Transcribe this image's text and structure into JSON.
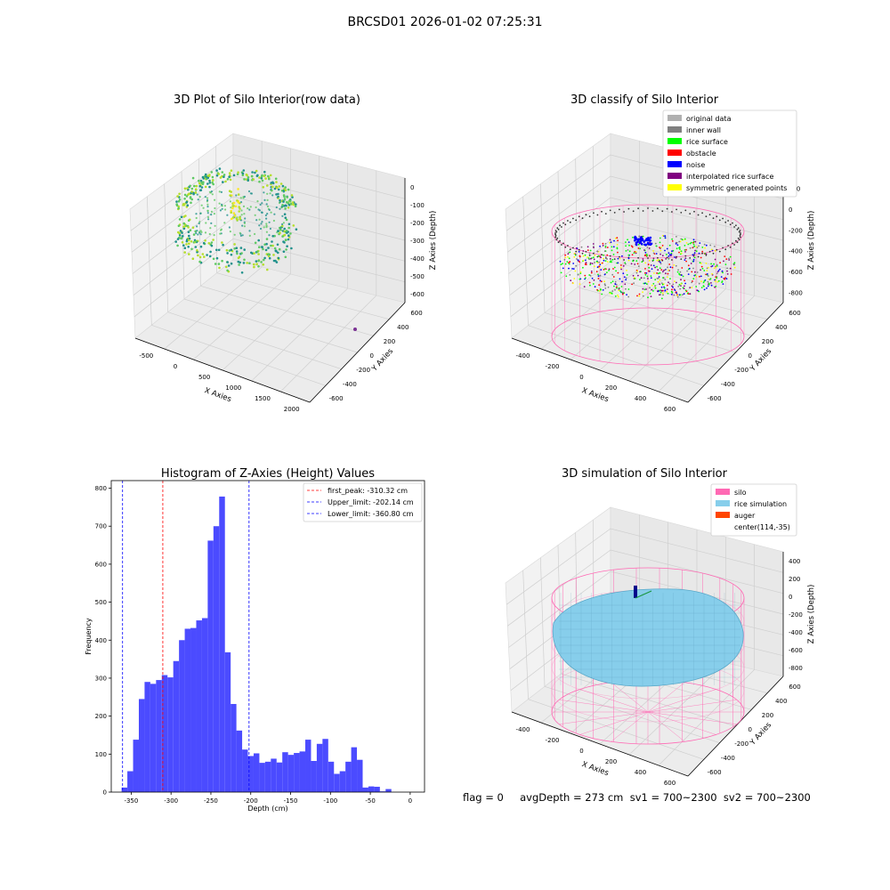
{
  "suptitle": "BRCSD01 2026-01-02 07:25:31",
  "status_text": "flag = 0     avgDepth = 273 cm  sv1 = 700~2300  sv2 = 700~2300",
  "colors": {
    "histogram_bar": "#4b4bff",
    "first_peak_line": "#ff0000",
    "limit_line": "#0000ff",
    "pane": "#f2f2f2",
    "silo_wire": "#ff69b4",
    "rice_sim": "#87ceeb"
  },
  "chart_data": [
    {
      "type": "scatter3d",
      "title": "3D Plot of Silo Interior(row data)",
      "xlabel": "X Axies",
      "ylabel": "Y Axies",
      "zlabel": "Z Axies (Depth)",
      "xticks": [
        "-500",
        "0",
        "500",
        "1000",
        "1500",
        "2000"
      ],
      "yticks": [
        "-600",
        "-400",
        "-200",
        "0",
        "200",
        "400",
        "600"
      ],
      "zticks": [
        "0",
        "-100",
        "-200",
        "-300",
        "-400",
        "-500",
        "-600"
      ],
      "colormap": "viridis"
    },
    {
      "type": "scatter3d",
      "title": "3D classify of Silo Interior",
      "xlabel": "X Axies",
      "ylabel": "Y Axies",
      "zlabel": "Z Axies (Depth)",
      "xticks": [
        "-400",
        "-200",
        "0",
        "200",
        "400",
        "600"
      ],
      "yticks": [
        "-600",
        "-400",
        "-200",
        "0",
        "200",
        "400",
        "600"
      ],
      "zticks": [
        "200",
        "0",
        "-200",
        "-400",
        "-600",
        "-800"
      ],
      "legend": [
        {
          "label": "original data",
          "color": "#b0b0b0"
        },
        {
          "label": "inner wall",
          "color": "#808080"
        },
        {
          "label": "rice surface",
          "color": "#00ff00"
        },
        {
          "label": "obstacle",
          "color": "#ff0000"
        },
        {
          "label": "noise",
          "color": "#0000ff"
        },
        {
          "label": "interpolated rice surface",
          "color": "#800080"
        },
        {
          "label": "symmetric generated points",
          "color": "#ffff00"
        }
      ],
      "legend_position": "upper-right"
    },
    {
      "type": "bar",
      "title": "Histogram of Z-Axies (Height) Values",
      "xlabel": "Depth (cm)",
      "ylabel": "Frequency",
      "xlim": [
        -375,
        18
      ],
      "ylim": [
        0,
        820
      ],
      "xticks": [
        -350,
        -300,
        -250,
        -200,
        -150,
        -100,
        -50,
        0
      ],
      "yticks": [
        0,
        100,
        200,
        300,
        400,
        500,
        600,
        700,
        800
      ],
      "bin_start": -362,
      "bin_width": 7.2,
      "values": [
        12,
        55,
        138,
        245,
        290,
        285,
        295,
        308,
        302,
        345,
        400,
        430,
        432,
        452,
        458,
        662,
        700,
        778,
        368,
        232,
        162,
        112,
        95,
        102,
        77,
        80,
        88,
        78,
        105,
        98,
        103,
        107,
        138,
        82,
        127,
        140,
        80,
        48,
        55,
        80,
        118,
        85,
        12,
        15,
        14,
        2,
        8
      ],
      "vlines": [
        {
          "label": "first_peak: -310.32 cm",
          "x": -310.32,
          "color": "#ff0000"
        },
        {
          "label": "Upper_limit: -202.14 cm",
          "x": -202.14,
          "color": "#0000ff"
        },
        {
          "label": "Lower_limit: -360.80 cm",
          "x": -360.8,
          "color": "#0000ff"
        }
      ],
      "legend_position": "upper-right"
    },
    {
      "type": "surface3d",
      "title": "3D simulation of Silo Interior",
      "xlabel": "X Axies",
      "ylabel": "Y Axies",
      "zlabel": "Z Axies (Depth)",
      "xticks": [
        "-400",
        "-200",
        "0",
        "200",
        "400",
        "600"
      ],
      "yticks": [
        "-600",
        "-400",
        "-200",
        "0",
        "200",
        "400",
        "600"
      ],
      "zticks": [
        "400",
        "200",
        "0",
        "-200",
        "-400",
        "-600",
        "-800"
      ],
      "legend": [
        {
          "label": "silo",
          "color": "#ff69b4"
        },
        {
          "label": "rice simulation",
          "color": "#87ceeb"
        },
        {
          "label": "auger",
          "color": "#ff4500"
        },
        {
          "label": "center(114,-35)",
          "color": ""
        }
      ],
      "legend_position": "upper-right"
    }
  ]
}
